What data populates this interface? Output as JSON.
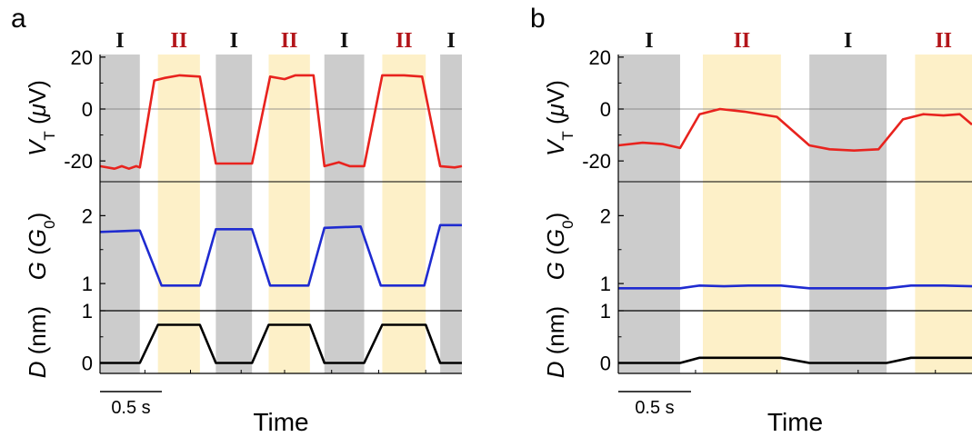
{
  "chart_data": [
    {
      "type": "line",
      "panel": "a",
      "xlabel": "Time",
      "scale_bar": "0.5 s",
      "regions": [
        {
          "label": "I",
          "x": [
            0.0,
            0.55
          ],
          "color": "#cccccc"
        },
        {
          "label": "II",
          "x": [
            0.8,
            1.38
          ],
          "color": "#fdf0c8"
        },
        {
          "label": "I",
          "x": [
            1.6,
            2.1
          ],
          "color": "#cccccc"
        },
        {
          "label": "II",
          "x": [
            2.33,
            2.9
          ],
          "color": "#fdf0c8"
        },
        {
          "label": "I",
          "x": [
            3.1,
            3.65
          ],
          "color": "#cccccc"
        },
        {
          "label": "II",
          "x": [
            3.9,
            4.5
          ],
          "color": "#fdf0c8"
        },
        {
          "label": "I",
          "x": [
            4.7,
            5.0
          ],
          "color": "#cccccc"
        }
      ],
      "subplots": [
        {
          "ylabel": {
            "main": "V",
            "sub": "T",
            "unit_open": " (",
            "unit_sym": "μ",
            "unit_rest": "V)"
          },
          "ylim": [
            -28,
            21
          ],
          "yticks": [
            "20",
            "0",
            "-20"
          ],
          "yticks_values": [
            20,
            0,
            -20
          ],
          "series": [
            {
              "color": "#e8231e",
              "x": [
                0,
                0.2,
                0.3,
                0.4,
                0.5,
                0.55,
                0.75,
                0.9,
                1.1,
                1.38,
                1.6,
                1.8,
                2.1,
                2.35,
                2.55,
                2.7,
                2.95,
                3.1,
                3.3,
                3.45,
                3.65,
                3.9,
                4.2,
                4.45,
                4.7,
                4.9,
                5.0
              ],
              "y": [
                -22,
                -23,
                -22,
                -23,
                -22,
                -22.5,
                11,
                12,
                13,
                12.5,
                -21,
                -21,
                -21,
                12.5,
                11.5,
                13,
                13,
                -22,
                -20.5,
                -22,
                -22,
                13,
                13,
                12.5,
                -22,
                -22.5,
                -22
              ]
            }
          ]
        },
        {
          "ylabel": {
            "main": "G",
            "unit_open": " (",
            "unit_sym": "G",
            "unit_sub": "0",
            "unit_rest": ")"
          },
          "ylim": [
            0.6,
            2.5
          ],
          "yticks": [
            "2",
            "1"
          ],
          "yticks_values": [
            2,
            1
          ],
          "series": [
            {
              "color": "#1f2bd0",
              "x": [
                0,
                0.5,
                0.55,
                0.85,
                1.38,
                1.6,
                2.1,
                2.35,
                2.88,
                3.1,
                3.6,
                3.88,
                4.48,
                4.7,
                5.0
              ],
              "y": [
                1.76,
                1.78,
                1.78,
                0.97,
                0.97,
                1.8,
                1.8,
                0.97,
                0.97,
                1.82,
                1.84,
                0.97,
                0.97,
                1.86,
                1.86
              ]
            }
          ]
        },
        {
          "ylabel": {
            "main": "D",
            "unit_open": " (nm)"
          },
          "ylim": [
            -0.2,
            1.0
          ],
          "yticks": [
            "1",
            "0"
          ],
          "yticks_values": [
            1,
            0
          ],
          "series": [
            {
              "color": "#000000",
              "x": [
                0,
                0.55,
                0.8,
                1.38,
                1.6,
                2.1,
                2.33,
                2.9,
                3.1,
                3.65,
                3.9,
                4.5,
                4.7,
                5.0
              ],
              "y": [
                0,
                0,
                0.73,
                0.73,
                0,
                0,
                0.73,
                0.73,
                0,
                0,
                0.73,
                0.73,
                0,
                0
              ]
            }
          ]
        }
      ]
    },
    {
      "type": "line",
      "panel": "b",
      "xlabel": "Time",
      "scale_bar": "0.5 s",
      "regions": [
        {
          "label": "I",
          "x": [
            0.0,
            0.76
          ],
          "color": "#cccccc"
        },
        {
          "label": "II",
          "x": [
            1.04,
            2.0
          ],
          "color": "#fdf0c8"
        },
        {
          "label": "I",
          "x": [
            2.35,
            3.3
          ],
          "color": "#cccccc"
        },
        {
          "label": "II",
          "x": [
            3.65,
            4.35
          ],
          "color": "#fdf0c8"
        }
      ],
      "subplots": [
        {
          "ylabel": {
            "main": "V",
            "sub": "T",
            "unit_open": " (",
            "unit_sym": "μ",
            "unit_rest": "V)"
          },
          "ylim": [
            -28,
            21
          ],
          "yticks": [
            "20",
            "0",
            "-20"
          ],
          "yticks_values": [
            20,
            0,
            -20
          ],
          "series": [
            {
              "color": "#e8231e",
              "x": [
                0,
                0.3,
                0.55,
                0.76,
                1.0,
                1.25,
                1.55,
                1.95,
                2.35,
                2.6,
                2.9,
                3.2,
                3.5,
                3.75,
                4.0,
                4.2,
                4.35
              ],
              "y": [
                -14,
                -13,
                -13.5,
                -15,
                -2,
                0,
                -1,
                -3,
                -14,
                -15.5,
                -16,
                -15.5,
                -4,
                -2,
                -2.5,
                -2,
                -6
              ]
            }
          ]
        },
        {
          "ylabel": {
            "main": "G",
            "unit_open": " (",
            "unit_sym": "G",
            "unit_sub": "0",
            "unit_rest": ")"
          },
          "ylim": [
            0.6,
            2.5
          ],
          "yticks": [
            "2",
            "1"
          ],
          "yticks_values": [
            2,
            1
          ],
          "series": [
            {
              "color": "#1f2bd0",
              "x": [
                0,
                0.5,
                0.76,
                1.0,
                1.3,
                1.6,
                2.0,
                2.35,
                2.8,
                3.3,
                3.6,
                4.0,
                4.35
              ],
              "y": [
                0.93,
                0.93,
                0.93,
                0.97,
                0.96,
                0.97,
                0.97,
                0.93,
                0.93,
                0.93,
                0.97,
                0.97,
                0.96
              ]
            }
          ]
        },
        {
          "ylabel": {
            "main": "D",
            "unit_open": " (nm)"
          },
          "ylim": [
            -0.2,
            1.0
          ],
          "yticks": [
            "1",
            "0"
          ],
          "yticks_values": [
            1,
            0
          ],
          "series": [
            {
              "color": "#000000",
              "x": [
                0,
                0.76,
                1.0,
                2.0,
                2.35,
                3.3,
                3.6,
                4.35
              ],
              "y": [
                0,
                0,
                0.1,
                0.1,
                0,
                0,
                0.1,
                0.1
              ]
            }
          ]
        }
      ]
    }
  ],
  "colors": {
    "region_I": "#cccccc",
    "region_II": "#fdf0c8",
    "label_I": "#111111",
    "label_II": "#b3151a"
  }
}
